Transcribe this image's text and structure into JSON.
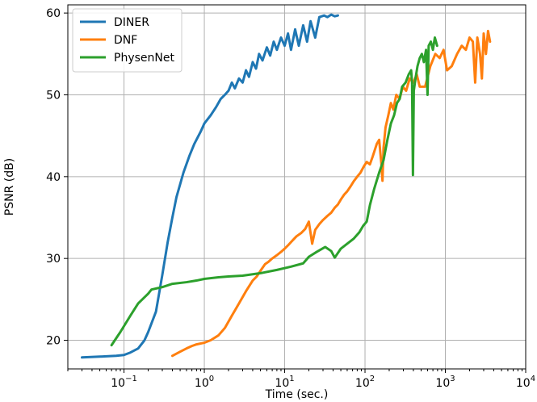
{
  "chart_data": {
    "type": "line",
    "title": "",
    "xlabel": "Time (sec.)",
    "ylabel": "PSNR (dB)",
    "xscale": "log",
    "xlim": [
      0.02,
      10000
    ],
    "ylim": [
      16.5,
      61
    ],
    "grid": true,
    "legend_position": "top-left",
    "x_ticks": [
      {
        "value": 0.1,
        "base": "10",
        "exp": "−1"
      },
      {
        "value": 1,
        "base": "10",
        "exp": "0"
      },
      {
        "value": 10,
        "base": "10",
        "exp": "1"
      },
      {
        "value": 100,
        "base": "10",
        "exp": "2"
      },
      {
        "value": 1000,
        "base": "10",
        "exp": "3"
      },
      {
        "value": 10000,
        "base": "10",
        "exp": "4"
      }
    ],
    "y_ticks": [
      20,
      30,
      40,
      50,
      60
    ],
    "series": [
      {
        "name": "DINER",
        "color": "#1f77b4",
        "points": [
          [
            0.03,
            17.9
          ],
          [
            0.05,
            18.0
          ],
          [
            0.08,
            18.1
          ],
          [
            0.1,
            18.2
          ],
          [
            0.12,
            18.5
          ],
          [
            0.15,
            19.0
          ],
          [
            0.18,
            20.0
          ],
          [
            0.2,
            21.0
          ],
          [
            0.25,
            23.5
          ],
          [
            0.3,
            28.0
          ],
          [
            0.35,
            32.0
          ],
          [
            0.4,
            35.0
          ],
          [
            0.45,
            37.5
          ],
          [
            0.55,
            40.5
          ],
          [
            0.65,
            42.5
          ],
          [
            0.75,
            44.0
          ],
          [
            0.9,
            45.5
          ],
          [
            1.0,
            46.5
          ],
          [
            1.2,
            47.5
          ],
          [
            1.4,
            48.5
          ],
          [
            1.6,
            49.5
          ],
          [
            1.8,
            50.0
          ],
          [
            2.0,
            50.5
          ],
          [
            2.2,
            51.5
          ],
          [
            2.4,
            50.8
          ],
          [
            2.7,
            52.0
          ],
          [
            3.0,
            51.5
          ],
          [
            3.3,
            53.0
          ],
          [
            3.6,
            52.2
          ],
          [
            4.0,
            54.0
          ],
          [
            4.4,
            53.2
          ],
          [
            4.8,
            55.0
          ],
          [
            5.3,
            54.2
          ],
          [
            6.0,
            55.8
          ],
          [
            6.6,
            54.8
          ],
          [
            7.3,
            56.5
          ],
          [
            8.0,
            55.5
          ],
          [
            9.0,
            57.0
          ],
          [
            10.0,
            56.0
          ],
          [
            11.0,
            57.5
          ],
          [
            12.0,
            55.5
          ],
          [
            13.5,
            58.0
          ],
          [
            15.0,
            56.0
          ],
          [
            17.0,
            58.5
          ],
          [
            19.0,
            56.5
          ],
          [
            21.0,
            59.0
          ],
          [
            24.0,
            57.0
          ],
          [
            27.0,
            59.5
          ],
          [
            31.0,
            59.7
          ],
          [
            34.0,
            59.5
          ],
          [
            38.0,
            59.8
          ],
          [
            42.0,
            59.6
          ],
          [
            46.0,
            59.7
          ]
        ]
      },
      {
        "name": "DNF",
        "color": "#ff7f0e",
        "points": [
          [
            0.4,
            18.1
          ],
          [
            0.5,
            18.6
          ],
          [
            0.6,
            19.0
          ],
          [
            0.7,
            19.3
          ],
          [
            0.8,
            19.5
          ],
          [
            1.0,
            19.7
          ],
          [
            1.2,
            20.0
          ],
          [
            1.5,
            20.6
          ],
          [
            1.8,
            21.5
          ],
          [
            2.2,
            23.0
          ],
          [
            2.7,
            24.5
          ],
          [
            3.3,
            26.0
          ],
          [
            4.0,
            27.3
          ],
          [
            4.5,
            27.8
          ],
          [
            5.0,
            28.5
          ],
          [
            5.7,
            29.3
          ],
          [
            6.3,
            29.6
          ],
          [
            7.0,
            30.0
          ],
          [
            8.0,
            30.4
          ],
          [
            9.0,
            30.8
          ],
          [
            10.0,
            31.2
          ],
          [
            11.0,
            31.6
          ],
          [
            12.0,
            32.0
          ],
          [
            14.0,
            32.7
          ],
          [
            16.0,
            33.1
          ],
          [
            18.0,
            33.6
          ],
          [
            20.0,
            34.5
          ],
          [
            22.0,
            31.8
          ],
          [
            24.0,
            33.5
          ],
          [
            27.0,
            34.2
          ],
          [
            30.0,
            34.7
          ],
          [
            34.0,
            35.2
          ],
          [
            38.0,
            35.6
          ],
          [
            42.0,
            36.2
          ],
          [
            46.0,
            36.6
          ],
          [
            50.0,
            37.2
          ],
          [
            55.0,
            37.8
          ],
          [
            60.0,
            38.2
          ],
          [
            66.0,
            38.8
          ],
          [
            72.0,
            39.4
          ],
          [
            80.0,
            40.0
          ],
          [
            88.0,
            40.5
          ],
          [
            96.0,
            41.2
          ],
          [
            105.0,
            41.8
          ],
          [
            115.0,
            41.5
          ],
          [
            125.0,
            42.5
          ],
          [
            140.0,
            44.0
          ],
          [
            150.0,
            44.5
          ],
          [
            160.0,
            41.5
          ],
          [
            165.0,
            39.5
          ],
          [
            170.0,
            43.5
          ],
          [
            180.0,
            46.0
          ],
          [
            195.0,
            47.5
          ],
          [
            210.0,
            49.0
          ],
          [
            225.0,
            48.2
          ],
          [
            245.0,
            50.0
          ],
          [
            270.0,
            49.5
          ],
          [
            295.0,
            51.0
          ],
          [
            325.0,
            50.5
          ],
          [
            360.0,
            52.0
          ],
          [
            400.0,
            51.5
          ],
          [
            440.0,
            52.5
          ],
          [
            480.0,
            51.0
          ],
          [
            560.0,
            51.0
          ],
          [
            650.0,
            53.5
          ],
          [
            750.0,
            55.0
          ],
          [
            850.0,
            54.5
          ],
          [
            950.0,
            55.5
          ],
          [
            1050.0,
            53.0
          ],
          [
            1200.0,
            53.5
          ],
          [
            1400.0,
            55.0
          ],
          [
            1600.0,
            56.0
          ],
          [
            1800.0,
            55.5
          ],
          [
            2000.0,
            57.0
          ],
          [
            2200.0,
            56.5
          ],
          [
            2350.0,
            51.5
          ],
          [
            2500.0,
            57.0
          ],
          [
            2700.0,
            55.0
          ],
          [
            2850.0,
            52.0
          ],
          [
            3000.0,
            57.5
          ],
          [
            3200.0,
            55.0
          ],
          [
            3400.0,
            57.8
          ],
          [
            3600.0,
            56.5
          ]
        ]
      },
      {
        "name": "PhysenNet",
        "color": "#2ca02c",
        "points": [
          [
            0.07,
            19.4
          ],
          [
            0.09,
            21.0
          ],
          [
            0.12,
            23.0
          ],
          [
            0.15,
            24.5
          ],
          [
            0.2,
            25.7
          ],
          [
            0.22,
            26.2
          ],
          [
            0.3,
            26.5
          ],
          [
            0.4,
            26.9
          ],
          [
            0.6,
            27.1
          ],
          [
            0.8,
            27.3
          ],
          [
            1.0,
            27.5
          ],
          [
            1.5,
            27.7
          ],
          [
            2.0,
            27.8
          ],
          [
            3.0,
            27.9
          ],
          [
            5.0,
            28.2
          ],
          [
            8.0,
            28.6
          ],
          [
            12.0,
            29.0
          ],
          [
            17.0,
            29.4
          ],
          [
            20.0,
            30.2
          ],
          [
            25.0,
            30.8
          ],
          [
            32.0,
            31.4
          ],
          [
            38.0,
            30.9
          ],
          [
            42.0,
            30.1
          ],
          [
            50.0,
            31.2
          ],
          [
            60.0,
            31.8
          ],
          [
            72.0,
            32.4
          ],
          [
            85.0,
            33.2
          ],
          [
            95.0,
            34.0
          ],
          [
            105.0,
            34.5
          ],
          [
            115.0,
            36.5
          ],
          [
            130.0,
            38.5
          ],
          [
            150.0,
            40.5
          ],
          [
            170.0,
            42.0
          ],
          [
            190.0,
            44.5
          ],
          [
            210.0,
            46.5
          ],
          [
            230.0,
            47.5
          ],
          [
            250.0,
            49.0
          ],
          [
            270.0,
            49.5
          ],
          [
            290.0,
            51.0
          ],
          [
            320.0,
            51.5
          ],
          [
            350.0,
            52.5
          ],
          [
            375.0,
            53.0
          ],
          [
            385.0,
            51.5
          ],
          [
            395.0,
            40.2
          ],
          [
            405.0,
            50.5
          ],
          [
            425.0,
            52.0
          ],
          [
            450.0,
            53.5
          ],
          [
            480.0,
            54.5
          ],
          [
            510.0,
            55.0
          ],
          [
            540.0,
            54.0
          ],
          [
            575.0,
            55.5
          ],
          [
            600.0,
            50.0
          ],
          [
            620.0,
            56.0
          ],
          [
            660.0,
            56.5
          ],
          [
            700.0,
            55.5
          ],
          [
            740.0,
            57.0
          ],
          [
            790.0,
            56.0
          ]
        ]
      }
    ]
  }
}
